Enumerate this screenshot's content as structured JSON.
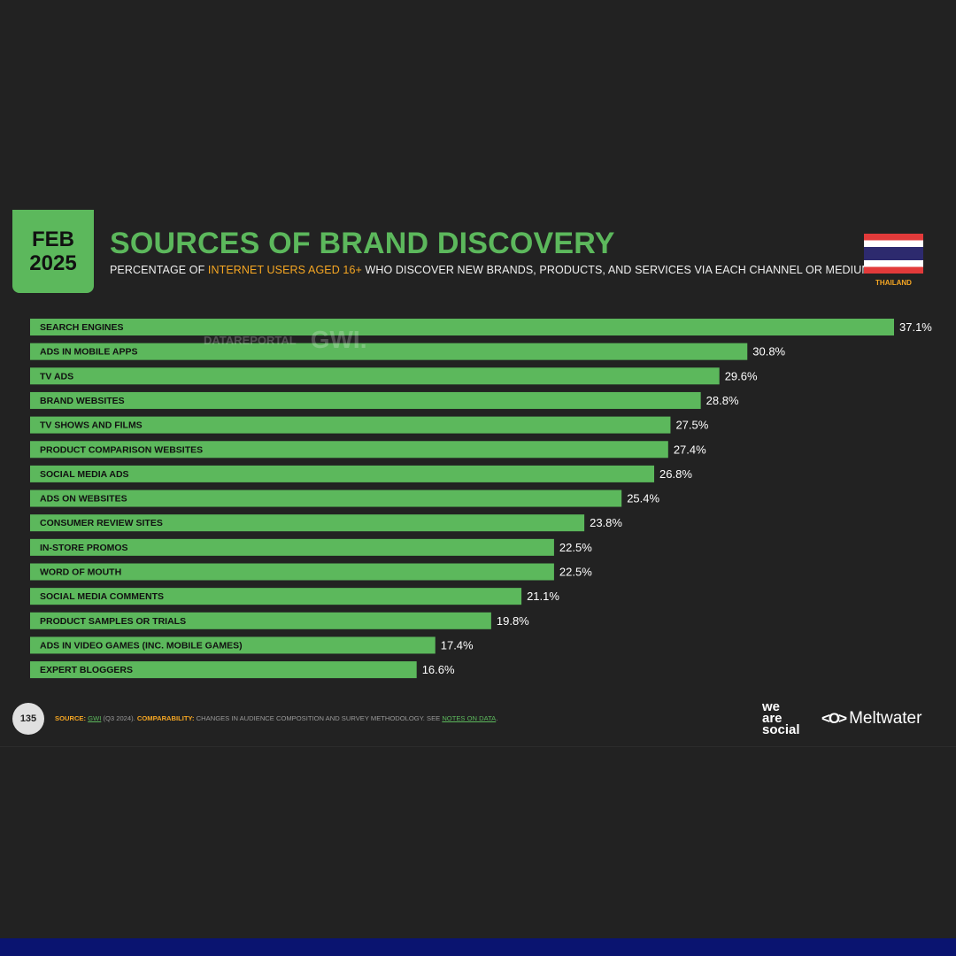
{
  "header": {
    "badge_month": "FEB",
    "badge_year": "2025",
    "title": "SOURCES OF BRAND DISCOVERY",
    "subtitle_pre": "PERCENTAGE OF ",
    "subtitle_highlight": "INTERNET USERS AGED 16+",
    "subtitle_post": " WHO DISCOVER NEW BRANDS, PRODUCTS, AND SERVICES VIA EACH CHANNEL OR MEDIUM",
    "country": "THAILAND"
  },
  "watermark": {
    "left": "DATAREPORTAL",
    "right": "GWI."
  },
  "colors": {
    "bar": "#5cb85c",
    "accent": "#f5a623",
    "background": "#222222"
  },
  "chart_data": {
    "type": "bar",
    "orientation": "horizontal",
    "categories": [
      "SEARCH ENGINES",
      "ADS IN MOBILE APPS",
      "TV ADS",
      "BRAND WEBSITES",
      "TV SHOWS AND FILMS",
      "PRODUCT COMPARISON WEBSITES",
      "SOCIAL MEDIA ADS",
      "ADS ON WEBSITES",
      "CONSUMER REVIEW SITES",
      "IN-STORE PROMOS",
      "WORD OF MOUTH",
      "SOCIAL MEDIA COMMENTS",
      "PRODUCT SAMPLES OR TRIALS",
      "ADS IN VIDEO GAMES (INC. MOBILE GAMES)",
      "EXPERT BLOGGERS"
    ],
    "values": [
      37.1,
      30.8,
      29.6,
      28.8,
      27.5,
      27.4,
      26.8,
      25.4,
      23.8,
      22.5,
      22.5,
      21.1,
      19.8,
      17.4,
      16.6
    ],
    "value_labels": [
      "37.1%",
      "30.8%",
      "29.6%",
      "28.8%",
      "27.5%",
      "27.4%",
      "26.8%",
      "25.4%",
      "23.8%",
      "22.5%",
      "22.5%",
      "21.1%",
      "19.8%",
      "17.4%",
      "16.6%"
    ],
    "unit": "%",
    "xlim": [
      0,
      37.1
    ],
    "grid": false,
    "legend": "none"
  },
  "footer": {
    "page_number": "135",
    "source_label": "SOURCE:",
    "source_name": "GWI",
    "source_period": " (Q3 2024). ",
    "comparability_label": "COMPARABILITY:",
    "comparability_text": " CHANGES IN AUDIENCE COMPOSITION AND SURVEY METHODOLOGY. SEE ",
    "notes_link": "NOTES ON DATA",
    "notes_end": ".",
    "brand1_line1": "we",
    "brand1_line2": "are",
    "brand1_line3": "social",
    "brand2_mark": "<O>",
    "brand2_name": "Meltwater"
  }
}
